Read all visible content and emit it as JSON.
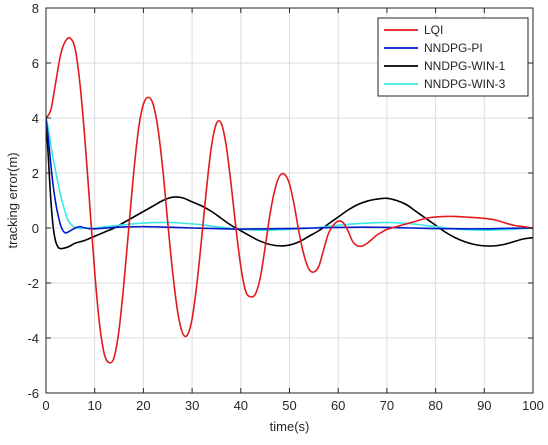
{
  "chart_data": {
    "type": "line",
    "title": "",
    "xlabel": "time(s)",
    "ylabel": "tracking error(m)",
    "xlim": [
      0,
      100
    ],
    "ylim": [
      -6,
      8
    ],
    "xticks": [
      0,
      10,
      20,
      30,
      40,
      50,
      60,
      70,
      80,
      90,
      100
    ],
    "yticks": [
      -6,
      -4,
      -2,
      0,
      2,
      4,
      6,
      8
    ],
    "grid": true,
    "legend_position": "top-right",
    "series": [
      {
        "name": "LQI",
        "color": "#e31a1c",
        "x": [
          0,
          1,
          2,
          3,
          4,
          5,
          6,
          7,
          8,
          9,
          10,
          11,
          12,
          13,
          14,
          15,
          16,
          17,
          18,
          19,
          20,
          21,
          22,
          23,
          24,
          25,
          26,
          27,
          28,
          29,
          30,
          31,
          32,
          33,
          34,
          35,
          36,
          37,
          38,
          39,
          40,
          41,
          42,
          43,
          44,
          45,
          46,
          47,
          48,
          49,
          50,
          51,
          52,
          53,
          54,
          55,
          56,
          57,
          58,
          59,
          60,
          61,
          62,
          63,
          64,
          65,
          66,
          67,
          68,
          69,
          70,
          72,
          74,
          76,
          78,
          80,
          82,
          84,
          86,
          88,
          90,
          92,
          94,
          96,
          98,
          100
        ],
        "y": [
          4.0,
          4.3,
          5.3,
          6.3,
          6.8,
          6.9,
          6.5,
          5.2,
          3.2,
          0.8,
          -1.6,
          -3.5,
          -4.6,
          -4.9,
          -4.7,
          -3.7,
          -2.0,
          0.0,
          2.0,
          3.6,
          4.5,
          4.75,
          4.5,
          3.6,
          2.1,
          0.2,
          -1.6,
          -3.0,
          -3.8,
          -3.9,
          -3.3,
          -2.0,
          -0.3,
          1.5,
          3.0,
          3.8,
          3.8,
          3.0,
          1.6,
          0.0,
          -1.4,
          -2.3,
          -2.5,
          -2.4,
          -1.8,
          -0.7,
          0.5,
          1.4,
          1.9,
          1.95,
          1.6,
          0.8,
          -0.2,
          -1.0,
          -1.5,
          -1.6,
          -1.4,
          -0.8,
          -0.2,
          0.1,
          0.25,
          0.2,
          -0.1,
          -0.5,
          -0.65,
          -0.65,
          -0.55,
          -0.4,
          -0.25,
          -0.15,
          -0.05,
          0.05,
          0.15,
          0.25,
          0.35,
          0.4,
          0.42,
          0.42,
          0.4,
          0.38,
          0.35,
          0.3,
          0.2,
          0.1,
          0.05,
          0.0
        ]
      },
      {
        "name": "NNDPG-PI",
        "color": "#0019c8",
        "x": [
          0,
          0.5,
          1,
          1.5,
          2,
          2.5,
          3,
          3.5,
          4,
          4.5,
          5,
          6,
          7,
          8,
          10,
          15,
          20,
          25,
          30,
          35,
          40,
          45,
          50,
          55,
          60,
          65,
          70,
          75,
          80,
          85,
          90,
          95,
          100
        ],
        "y": [
          4.0,
          3.2,
          2.3,
          1.5,
          0.9,
          0.45,
          0.1,
          -0.1,
          -0.18,
          -0.15,
          -0.1,
          0.0,
          0.05,
          0.0,
          -0.03,
          0.03,
          0.05,
          0.03,
          0.0,
          -0.02,
          -0.04,
          -0.03,
          -0.02,
          0.0,
          0.02,
          0.03,
          0.02,
          0.0,
          -0.02,
          -0.03,
          -0.03,
          -0.01,
          0.0
        ]
      },
      {
        "name": "NNDPG-WIN-1",
        "color": "#000000",
        "x": [
          0,
          0.5,
          1,
          1.5,
          2,
          2.5,
          3,
          4,
          5,
          6,
          8,
          10,
          12,
          14,
          16,
          18,
          20,
          22,
          24,
          26,
          28,
          30,
          32,
          34,
          36,
          38,
          40,
          42,
          44,
          46,
          48,
          50,
          52,
          54,
          56,
          58,
          60,
          62,
          64,
          66,
          68,
          70,
          72,
          74,
          76,
          78,
          80,
          82,
          84,
          86,
          88,
          90,
          92,
          94,
          96,
          98,
          100
        ],
        "y": [
          4.0,
          2.5,
          1.0,
          0.0,
          -0.5,
          -0.7,
          -0.75,
          -0.72,
          -0.65,
          -0.55,
          -0.45,
          -0.3,
          -0.15,
          0.0,
          0.2,
          0.4,
          0.6,
          0.8,
          1.0,
          1.12,
          1.1,
          0.95,
          0.8,
          0.6,
          0.35,
          0.1,
          -0.1,
          -0.3,
          -0.48,
          -0.6,
          -0.65,
          -0.62,
          -0.5,
          -0.3,
          -0.1,
          0.15,
          0.4,
          0.65,
          0.85,
          0.98,
          1.05,
          1.08,
          1.0,
          0.85,
          0.6,
          0.35,
          0.1,
          -0.15,
          -0.35,
          -0.5,
          -0.6,
          -0.65,
          -0.65,
          -0.6,
          -0.5,
          -0.4,
          -0.35
        ]
      },
      {
        "name": "NNDPG-WIN-3",
        "color": "#3be8e8",
        "x": [
          0,
          0.5,
          1,
          1.5,
          2,
          2.5,
          3,
          3.5,
          4,
          4.5,
          5,
          5.5,
          6,
          7,
          8,
          10,
          15,
          20,
          25,
          30,
          35,
          40,
          45,
          50,
          55,
          60,
          65,
          70,
          75,
          80,
          85,
          90,
          95,
          100
        ],
        "y": [
          4.0,
          3.6,
          3.0,
          2.5,
          2.05,
          1.6,
          1.2,
          0.85,
          0.55,
          0.3,
          0.15,
          0.08,
          0.02,
          -0.02,
          0.0,
          0.0,
          0.1,
          0.18,
          0.2,
          0.15,
          0.05,
          -0.05,
          -0.08,
          -0.05,
          0.0,
          0.1,
          0.17,
          0.2,
          0.15,
          0.05,
          -0.05,
          -0.08,
          -0.05,
          0.0
        ]
      }
    ]
  }
}
